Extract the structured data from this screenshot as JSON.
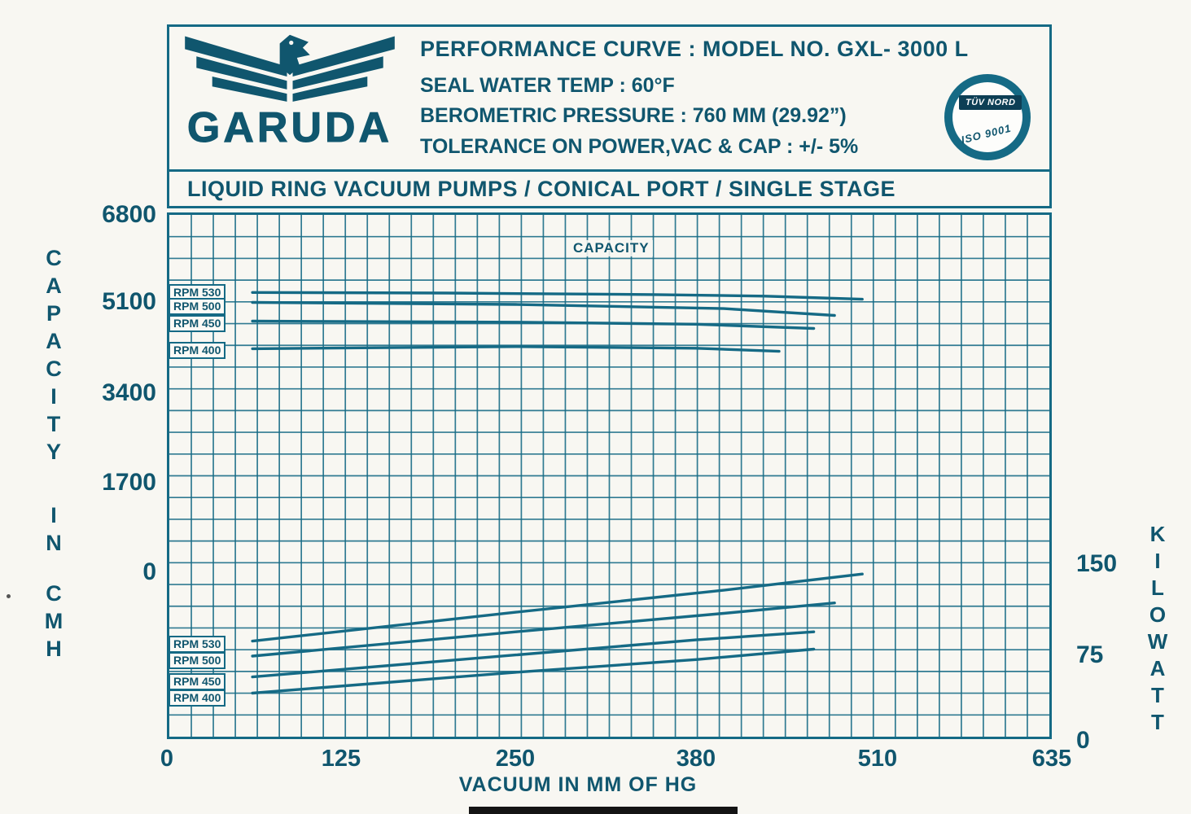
{
  "colors": {
    "accent": "#156a85",
    "ink": "#10566e"
  },
  "header": {
    "brand": "GARUDA",
    "title": "PERFORMANCE CURVE : MODEL NO. GXL- 3000 L",
    "line2": "SEAL WATER TEMP : 60°F",
    "line3": "BEROMETRIC PRESSURE : 760 MM (29.92”)",
    "line4": "TOLERANCE ON POWER,VAC & CAP : +/- 5%",
    "subtitle": "LIQUID RING VACUUM PUMPS / CONICAL PORT / SINGLE STAGE",
    "badge": {
      "title": "TÜV NORD",
      "cert": "ISO 9001"
    }
  },
  "axes": {
    "left_words": [
      "CAPACITY",
      "IN",
      "CMH"
    ],
    "right_words": [
      "KILOWATT"
    ]
  },
  "chart_data": {
    "type": "line",
    "title": "PERFORMANCE CURVE : MODEL NO. GXL-3000 L",
    "xlabel": "VACUUM IN MM OF HG",
    "xlim": [
      0,
      635
    ],
    "x_ticks": [
      0,
      125,
      250,
      380,
      510,
      635
    ],
    "grid": true,
    "groups": [
      {
        "name": "capacity",
        "ylabel": "CAPACITY IN CMH",
        "axis_side": "left",
        "ylim": [
          0,
          6800
        ],
        "yticks": [
          0,
          1700,
          3400,
          5100,
          6800
        ],
        "annotation": "CAPACITY",
        "series": [
          {
            "name": "RPM 530",
            "points": [
              [
                60,
                5310
              ],
              [
                200,
                5300
              ],
              [
                350,
                5270
              ],
              [
                430,
                5240
              ],
              [
                500,
                5180
              ]
            ]
          },
          {
            "name": "RPM 500",
            "points": [
              [
                60,
                5120
              ],
              [
                250,
                5080
              ],
              [
                400,
                5000
              ],
              [
                480,
                4870
              ]
            ]
          },
          {
            "name": "RPM 450",
            "points": [
              [
                60,
                4760
              ],
              [
                250,
                4740
              ],
              [
                380,
                4700
              ],
              [
                465,
                4620
              ]
            ]
          },
          {
            "name": "RPM 400",
            "points": [
              [
                60,
                4230
              ],
              [
                250,
                4270
              ],
              [
                380,
                4240
              ],
              [
                440,
                4180
              ]
            ]
          }
        ]
      },
      {
        "name": "power",
        "ylabel": "KILOWATT",
        "axis_side": "right",
        "ylim": [
          0,
          150
        ],
        "yticks": [
          0,
          75,
          150
        ],
        "series": [
          {
            "name": "RPM 530",
            "points": [
              [
                60,
                82
              ],
              [
                250,
                107
              ],
              [
                400,
                126
              ],
              [
                500,
                140
              ]
            ]
          },
          {
            "name": "RPM 500",
            "points": [
              [
                60,
                69
              ],
              [
                250,
                90
              ],
              [
                400,
                106
              ],
              [
                480,
                115
              ]
            ]
          },
          {
            "name": "RPM 450",
            "points": [
              [
                60,
                51
              ],
              [
                250,
                70
              ],
              [
                380,
                83
              ],
              [
                465,
                90
              ]
            ]
          },
          {
            "name": "RPM 400",
            "points": [
              [
                60,
                37
              ],
              [
                250,
                55
              ],
              [
                380,
                66
              ],
              [
                465,
                75
              ]
            ]
          }
        ]
      }
    ]
  }
}
